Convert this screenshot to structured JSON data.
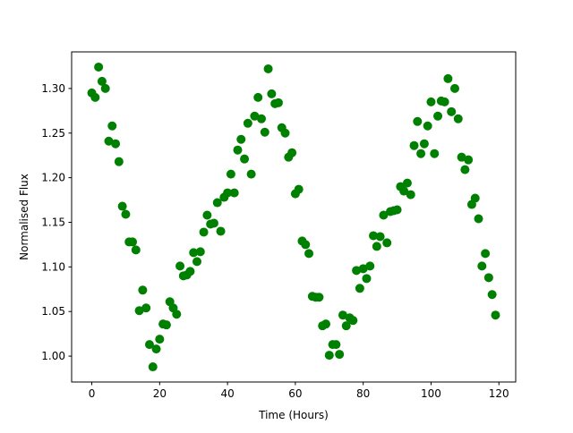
{
  "chart_data": {
    "type": "scatter",
    "title": "",
    "xlabel": "Time (Hours)",
    "ylabel": "Normalised Flux",
    "xlim": [
      -5.95,
      124.95
    ],
    "ylim": [
      0.971,
      1.341
    ],
    "xticks": [
      0,
      20,
      40,
      60,
      80,
      100,
      120
    ],
    "xtick_labels": [
      "0",
      "20",
      "40",
      "60",
      "80",
      "100",
      "120"
    ],
    "yticks": [
      1.0,
      1.05,
      1.1,
      1.15,
      1.2,
      1.25,
      1.3
    ],
    "ytick_labels": [
      "1.00",
      "1.05",
      "1.10",
      "1.15",
      "1.20",
      "1.25",
      "1.30"
    ],
    "grid": false,
    "marker_color": "#008000",
    "x": [
      0,
      1,
      2,
      3,
      4,
      5,
      6,
      7,
      8,
      9,
      10,
      11,
      12,
      13,
      14,
      15,
      16,
      17,
      18,
      19,
      20,
      21,
      22,
      23,
      24,
      25,
      26,
      27,
      28,
      29,
      30,
      31,
      32,
      33,
      34,
      35,
      36,
      37,
      38,
      39,
      40,
      41,
      42,
      43,
      44,
      45,
      46,
      47,
      48,
      49,
      50,
      51,
      52,
      53,
      54,
      55,
      56,
      57,
      58,
      59,
      60,
      61,
      62,
      63,
      64,
      65,
      66,
      67,
      68,
      69,
      70,
      71,
      72,
      73,
      74,
      75,
      76,
      77,
      78,
      79,
      80,
      81,
      82,
      83,
      84,
      85,
      86,
      87,
      88,
      89,
      90,
      91,
      92,
      93,
      94,
      95,
      96,
      97,
      98,
      99,
      100,
      101,
      102,
      103,
      104,
      105,
      106,
      107,
      108,
      109,
      110,
      111,
      112,
      113,
      114,
      115,
      116,
      117,
      118,
      119
    ],
    "y": [
      1.295,
      1.29,
      1.324,
      1.308,
      1.3,
      1.241,
      1.258,
      1.238,
      1.218,
      1.168,
      1.159,
      1.128,
      1.128,
      1.119,
      1.051,
      1.074,
      1.054,
      1.013,
      0.988,
      1.008,
      1.019,
      1.036,
      1.035,
      1.061,
      1.054,
      1.047,
      1.101,
      1.09,
      1.091,
      1.095,
      1.116,
      1.106,
      1.117,
      1.139,
      1.158,
      1.148,
      1.149,
      1.172,
      1.14,
      1.178,
      1.183,
      1.204,
      1.183,
      1.231,
      1.243,
      1.221,
      1.261,
      1.204,
      1.269,
      1.29,
      1.266,
      1.251,
      1.322,
      1.294,
      1.283,
      1.284,
      1.256,
      1.25,
      1.223,
      1.228,
      1.182,
      1.187,
      1.129,
      1.125,
      1.115,
      1.067,
      1.066,
      1.066,
      1.034,
      1.036,
      1.001,
      1.013,
      1.013,
      1.002,
      1.046,
      1.034,
      1.043,
      1.04,
      1.096,
      1.076,
      1.098,
      1.087,
      1.101,
      1.135,
      1.123,
      1.134,
      1.158,
      1.127,
      1.162,
      1.163,
      1.164,
      1.19,
      1.185,
      1.194,
      1.181,
      1.236,
      1.263,
      1.227,
      1.238,
      1.258,
      1.285,
      1.227,
      1.269,
      1.286,
      1.285,
      1.311,
      1.274,
      1.3,
      1.266,
      1.223,
      1.209,
      1.22,
      1.17,
      1.177,
      1.154,
      1.101,
      1.115,
      1.088,
      1.069,
      1.046
    ]
  }
}
